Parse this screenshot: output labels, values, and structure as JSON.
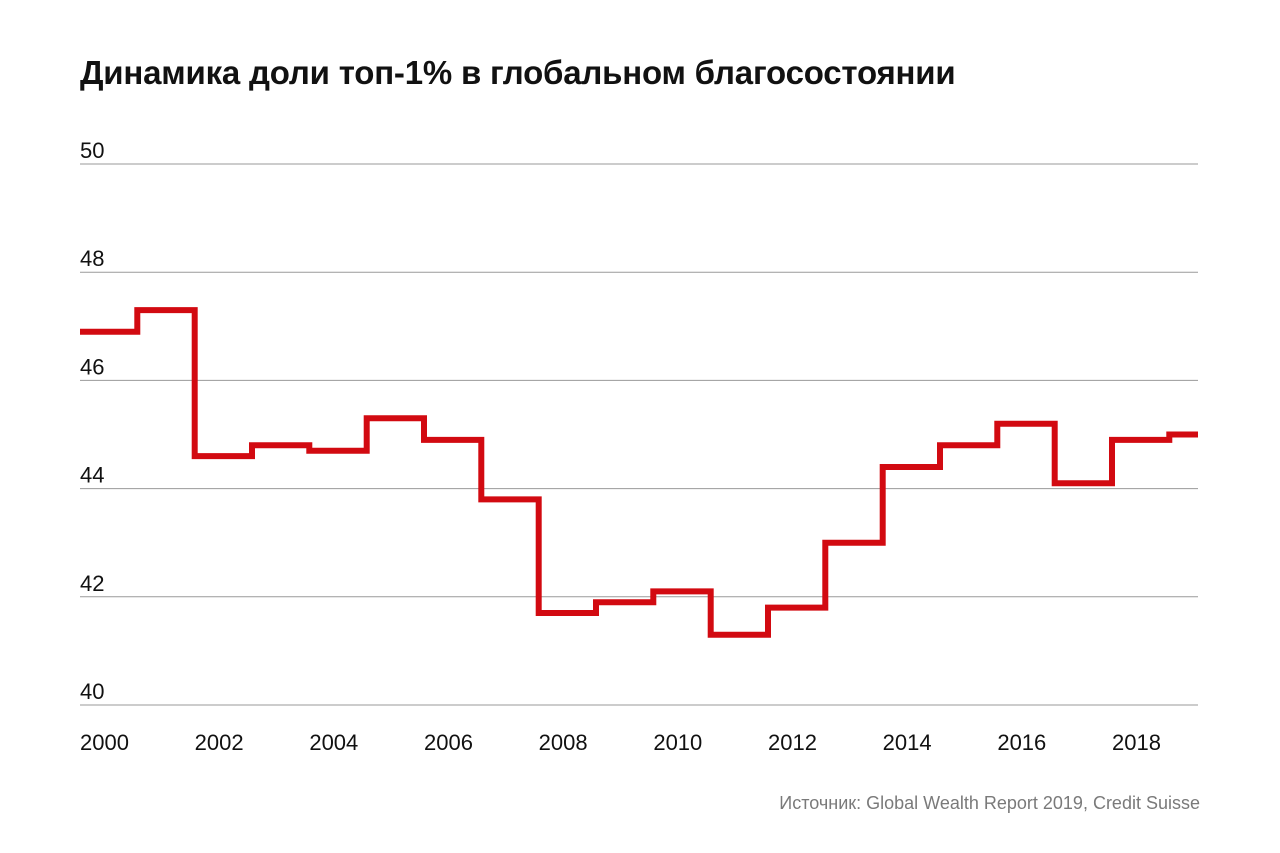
{
  "header": {
    "title": "Динамика доли топ-1% в глобальном благосостоянии"
  },
  "footer": {
    "source": "Источник: Global Wealth Report 2019, Credit Suisse"
  },
  "colors": {
    "line": "#d20a11",
    "grid": "#9a9a9a",
    "text": "#111111",
    "source": "#7a7a7a"
  },
  "chart_data": {
    "type": "line",
    "step": true,
    "title": "Динамика доли топ-1% в глобальном благосостоянии",
    "xlabel": "",
    "ylabel": "",
    "grid": true,
    "legend": "none",
    "xlim": [
      2000,
      2019.5
    ],
    "ylim": [
      40,
      50
    ],
    "x_ticks": [
      "2000",
      "2002",
      "2004",
      "2006",
      "2008",
      "2010",
      "2012",
      "2014",
      "2016",
      "2018"
    ],
    "y_ticks": [
      "40",
      "42",
      "44",
      "46",
      "48",
      "50"
    ],
    "series": [
      {
        "x": [
          2000,
          2001,
          2002,
          2003,
          2004,
          2005,
          2006,
          2007,
          2008,
          2009,
          2010,
          2011,
          2012,
          2013,
          2014,
          2015,
          2016,
          2017,
          2018,
          2019
        ],
        "values": [
          46.9,
          47.3,
          44.6,
          44.8,
          44.7,
          45.3,
          44.9,
          43.8,
          41.7,
          41.9,
          42.1,
          41.3,
          41.8,
          43.0,
          44.4,
          44.8,
          45.2,
          44.1,
          44.9,
          45.0
        ]
      }
    ]
  }
}
